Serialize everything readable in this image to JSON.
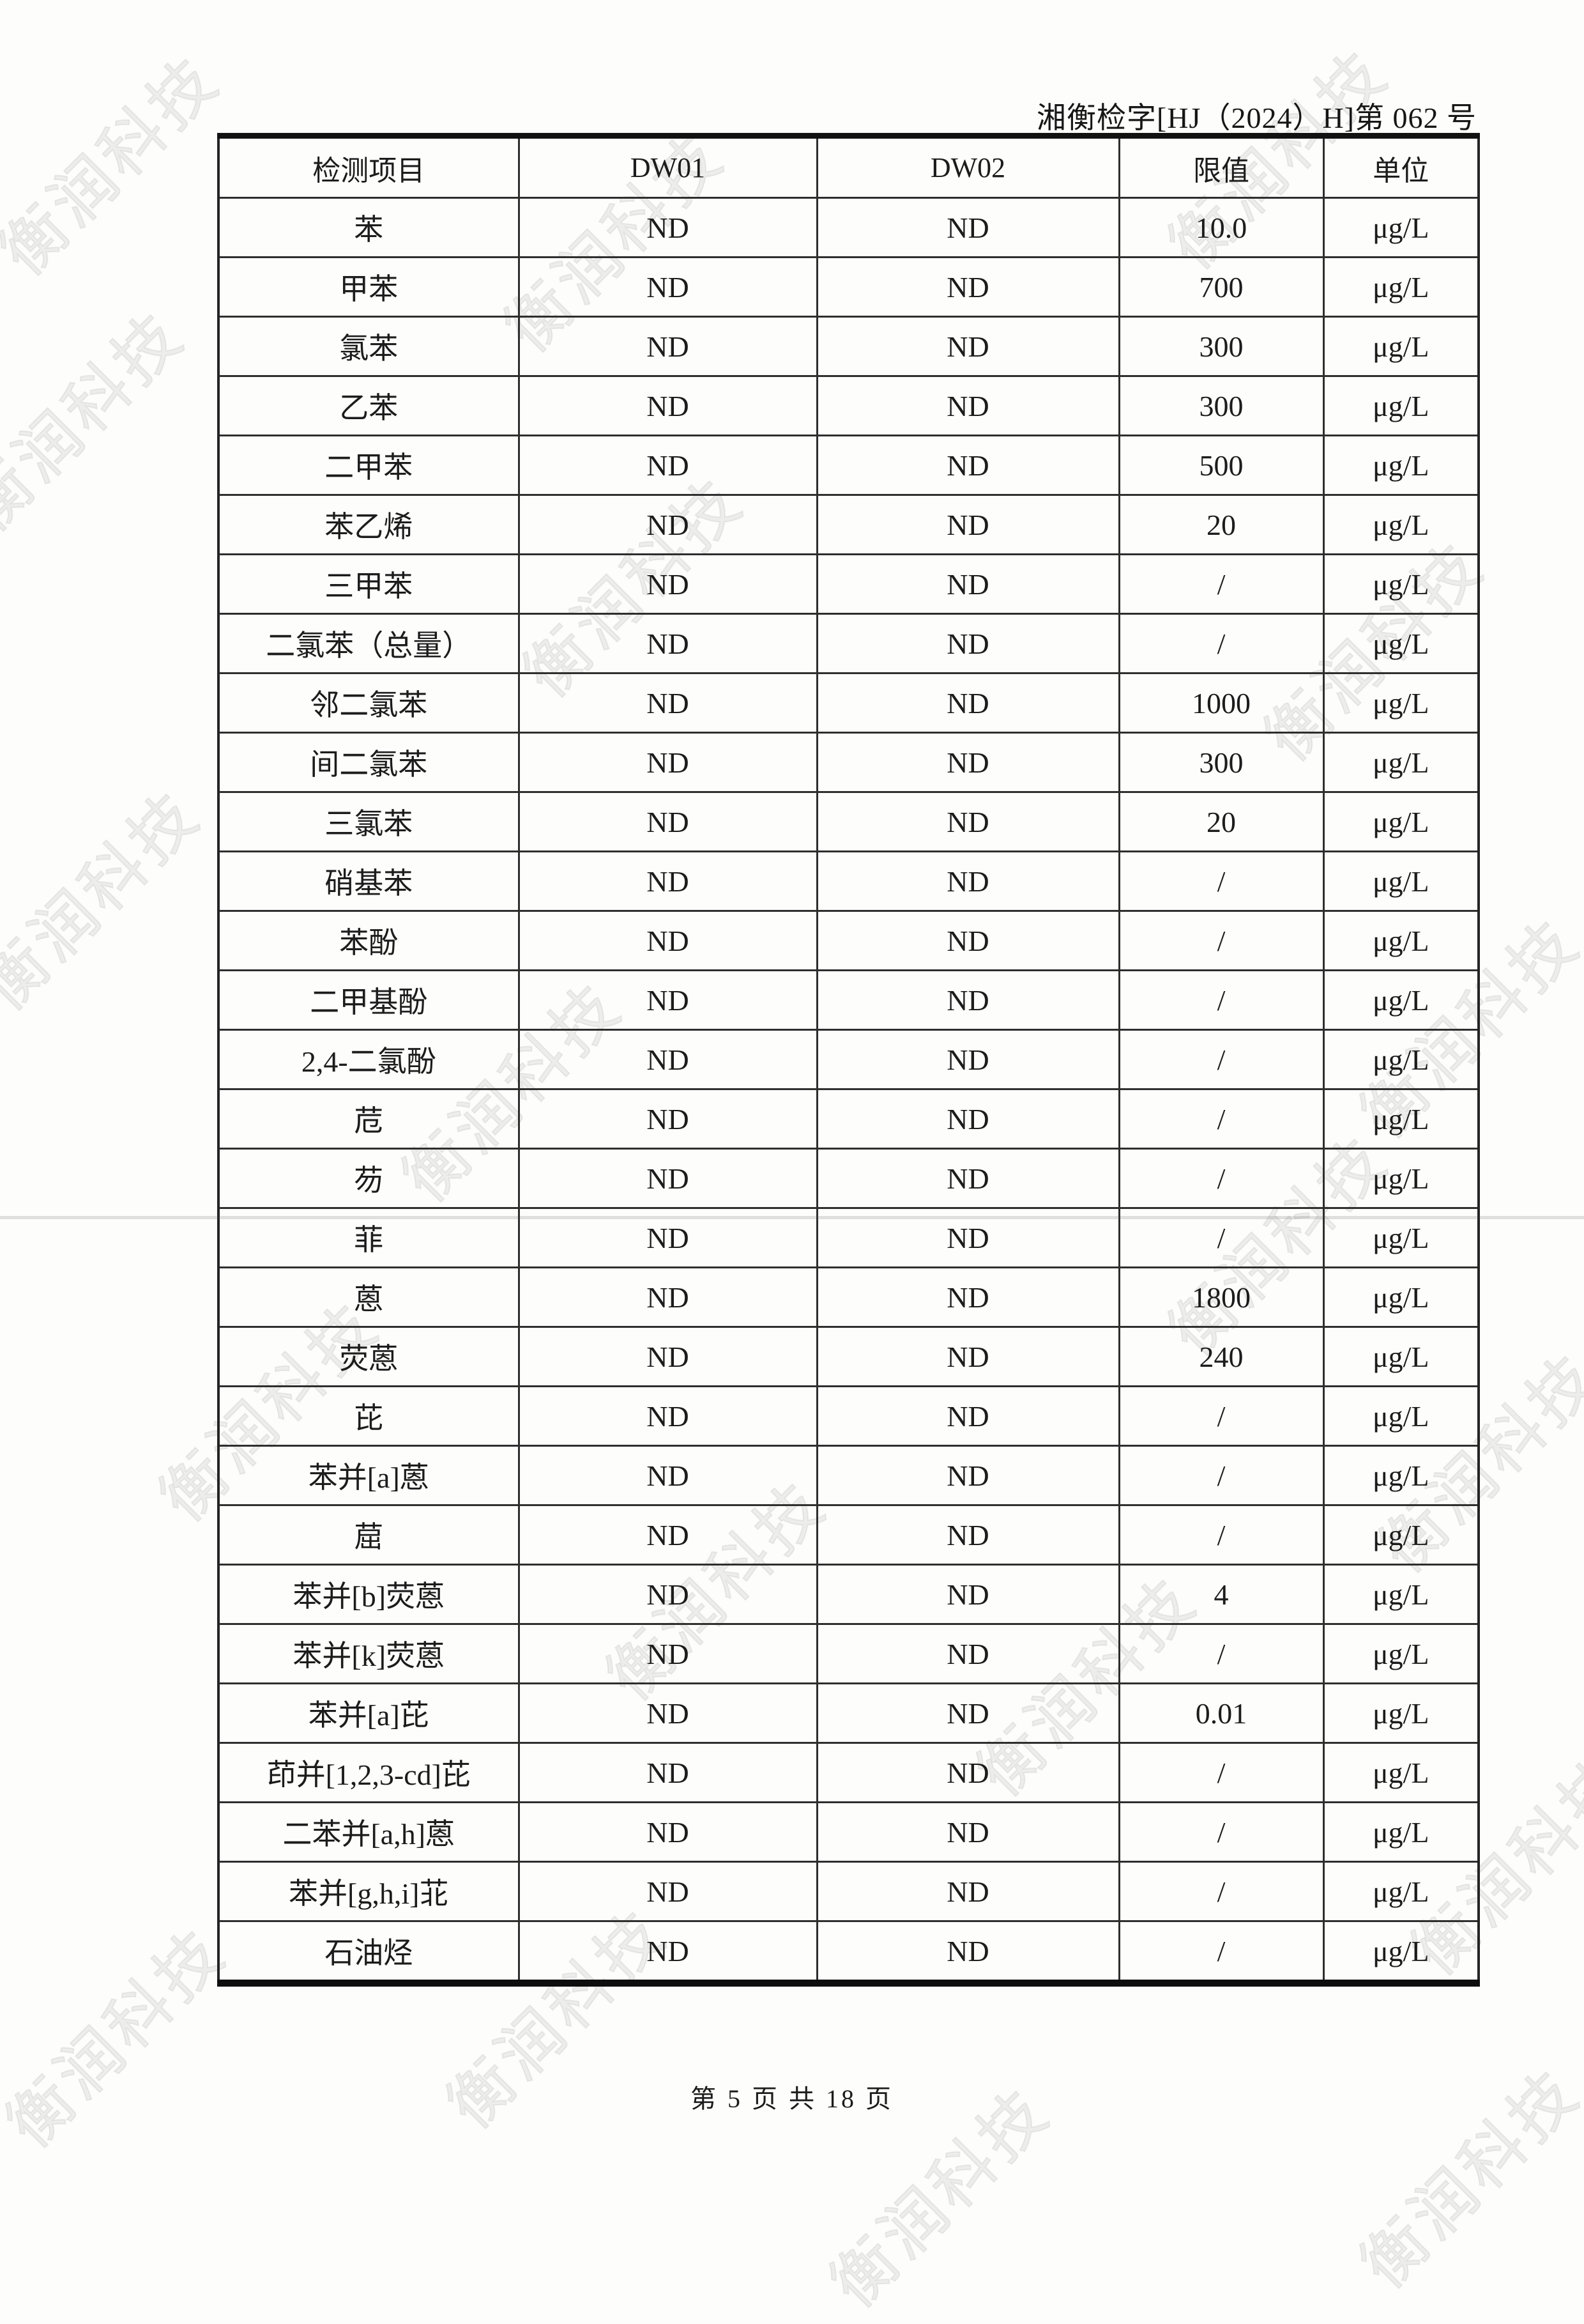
{
  "page": {
    "doc_number": "湘衡检字[HJ（2024）H]第 062 号",
    "footer": "第 5 页 共 18 页",
    "watermark_text": "衡润科技"
  },
  "table": {
    "columns": [
      "检测项目",
      "DW01",
      "DW02",
      "限值",
      "单位"
    ],
    "rows": [
      {
        "item": "苯",
        "dw01": "ND",
        "dw02": "ND",
        "limit": "10.0",
        "unit": "μg/L"
      },
      {
        "item": "甲苯",
        "dw01": "ND",
        "dw02": "ND",
        "limit": "700",
        "unit": "μg/L"
      },
      {
        "item": "氯苯",
        "dw01": "ND",
        "dw02": "ND",
        "limit": "300",
        "unit": "μg/L"
      },
      {
        "item": "乙苯",
        "dw01": "ND",
        "dw02": "ND",
        "limit": "300",
        "unit": "μg/L"
      },
      {
        "item": "二甲苯",
        "dw01": "ND",
        "dw02": "ND",
        "limit": "500",
        "unit": "μg/L"
      },
      {
        "item": "苯乙烯",
        "dw01": "ND",
        "dw02": "ND",
        "limit": "20",
        "unit": "μg/L"
      },
      {
        "item": "三甲苯",
        "dw01": "ND",
        "dw02": "ND",
        "limit": "/",
        "unit": "μg/L"
      },
      {
        "item": "二氯苯（总量）",
        "dw01": "ND",
        "dw02": "ND",
        "limit": "/",
        "unit": "μg/L"
      },
      {
        "item": "邻二氯苯",
        "dw01": "ND",
        "dw02": "ND",
        "limit": "1000",
        "unit": "μg/L"
      },
      {
        "item": "间二氯苯",
        "dw01": "ND",
        "dw02": "ND",
        "limit": "300",
        "unit": "μg/L"
      },
      {
        "item": "三氯苯",
        "dw01": "ND",
        "dw02": "ND",
        "limit": "20",
        "unit": "μg/L"
      },
      {
        "item": "硝基苯",
        "dw01": "ND",
        "dw02": "ND",
        "limit": "/",
        "unit": "μg/L"
      },
      {
        "item": "苯酚",
        "dw01": "ND",
        "dw02": "ND",
        "limit": "/",
        "unit": "μg/L"
      },
      {
        "item": "二甲基酚",
        "dw01": "ND",
        "dw02": "ND",
        "limit": "/",
        "unit": "μg/L"
      },
      {
        "item": "2,4-二氯酚",
        "dw01": "ND",
        "dw02": "ND",
        "limit": "/",
        "unit": "μg/L"
      },
      {
        "item": "苊",
        "dw01": "ND",
        "dw02": "ND",
        "limit": "/",
        "unit": "μg/L"
      },
      {
        "item": "芴",
        "dw01": "ND",
        "dw02": "ND",
        "limit": "/",
        "unit": "μg/L"
      },
      {
        "item": "菲",
        "dw01": "ND",
        "dw02": "ND",
        "limit": "/",
        "unit": "μg/L"
      },
      {
        "item": "蒽",
        "dw01": "ND",
        "dw02": "ND",
        "limit": "1800",
        "unit": "μg/L"
      },
      {
        "item": "荧蒽",
        "dw01": "ND",
        "dw02": "ND",
        "limit": "240",
        "unit": "μg/L"
      },
      {
        "item": "芘",
        "dw01": "ND",
        "dw02": "ND",
        "limit": "/",
        "unit": "μg/L"
      },
      {
        "item": "苯并[a]蒽",
        "dw01": "ND",
        "dw02": "ND",
        "limit": "/",
        "unit": "μg/L"
      },
      {
        "item": "䓛",
        "dw01": "ND",
        "dw02": "ND",
        "limit": "/",
        "unit": "μg/L"
      },
      {
        "item": "苯并[b]荧蒽",
        "dw01": "ND",
        "dw02": "ND",
        "limit": "4",
        "unit": "μg/L"
      },
      {
        "item": "苯并[k]荧蒽",
        "dw01": "ND",
        "dw02": "ND",
        "limit": "/",
        "unit": "μg/L"
      },
      {
        "item": "苯并[a]芘",
        "dw01": "ND",
        "dw02": "ND",
        "limit": "0.01",
        "unit": "μg/L"
      },
      {
        "item": "茚并[1,2,3-cd]芘",
        "dw01": "ND",
        "dw02": "ND",
        "limit": "/",
        "unit": "μg/L"
      },
      {
        "item": "二苯并[a,h]蒽",
        "dw01": "ND",
        "dw02": "ND",
        "limit": "/",
        "unit": "μg/L"
      },
      {
        "item": "苯并[g,h,i]苝",
        "dw01": "ND",
        "dw02": "ND",
        "limit": "/",
        "unit": "μg/L"
      },
      {
        "item": "石油烃",
        "dw01": "ND",
        "dw02": "ND",
        "limit": "/",
        "unit": "μg/L"
      }
    ]
  }
}
